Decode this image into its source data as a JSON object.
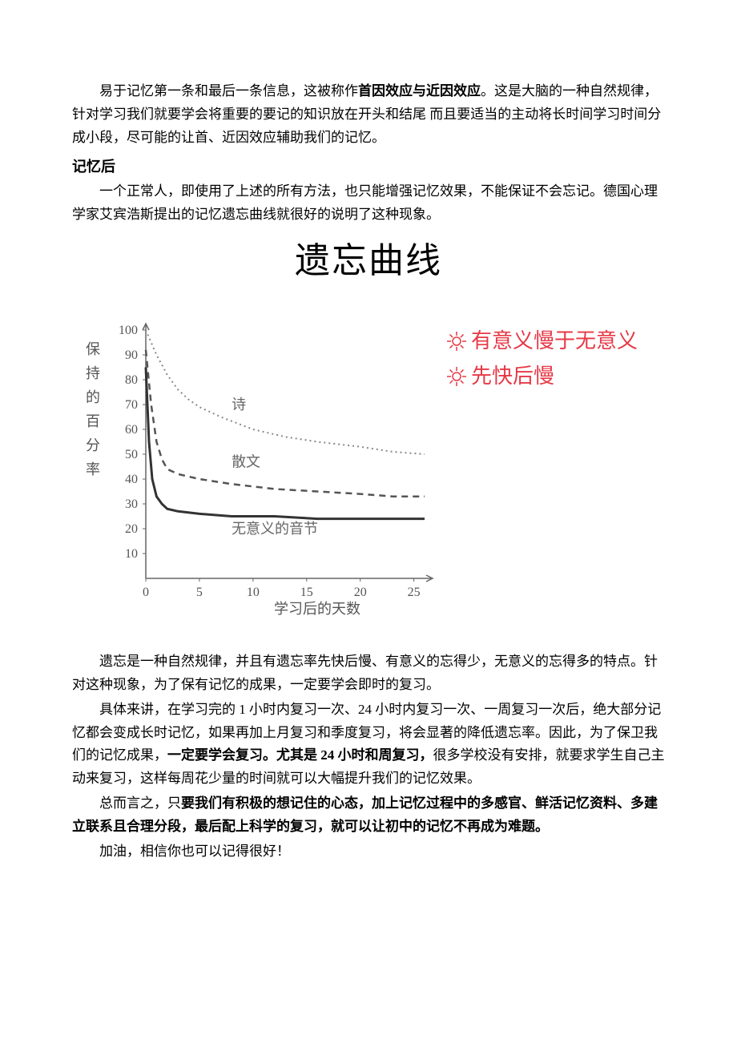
{
  "p1": {
    "a": "易于记忆第一条和最后一条信息，这被称作",
    "b": "首因效应与近因效应",
    "c": "。这是大脑的一种自然规律，针对学习我们就要学会将重要的要记的知识放在开头和结尾 而且要适当的主动将长时间学习时间分成小段，尽可能的让首、近因效应辅助我们的记忆。"
  },
  "h1": "记忆后",
  "p2": "一个正常人，即使用了上述的所有方法，也只能增强记忆效果，不能保证不会忘记。德国心理学家艾宾浩斯提出的记忆遗忘曲线就很好的说明了这种现象。",
  "chart": {
    "type": "line",
    "title": "遗忘曲线",
    "title_fontsize": 44,
    "legend": {
      "items": [
        "有意义慢于无意义",
        "先快后慢"
      ],
      "color": "#e63946",
      "fontsize": 28,
      "icon": "sun"
    },
    "y_axis": {
      "label": "保持的百分率",
      "label_fontsize": 18,
      "lim": [
        0,
        100
      ],
      "ticks": [
        10,
        20,
        30,
        40,
        50,
        60,
        70,
        80,
        90,
        100
      ]
    },
    "x_axis": {
      "label": "学习后的天数",
      "label_fontsize": 18,
      "lim": [
        0,
        26
      ],
      "ticks": [
        0,
        5,
        10,
        15,
        20,
        25
      ]
    },
    "series": [
      {
        "name": "诗",
        "label": "诗",
        "color": "#888888",
        "style": "dotted",
        "line_width": 2,
        "points": [
          [
            0,
            100
          ],
          [
            1,
            90
          ],
          [
            2,
            82
          ],
          [
            3,
            76
          ],
          [
            4,
            72
          ],
          [
            5,
            69
          ],
          [
            7,
            65
          ],
          [
            10,
            60
          ],
          [
            13,
            57
          ],
          [
            16,
            55
          ],
          [
            20,
            53
          ],
          [
            23,
            51
          ],
          [
            26,
            50
          ]
        ]
      },
      {
        "name": "散文",
        "label": "散文",
        "color": "#555555",
        "style": "dashed",
        "line_width": 2.5,
        "points": [
          [
            0,
            92
          ],
          [
            0.5,
            70
          ],
          [
            1,
            55
          ],
          [
            1.5,
            48
          ],
          [
            2,
            44
          ],
          [
            3,
            42
          ],
          [
            5,
            40
          ],
          [
            8,
            38
          ],
          [
            12,
            36
          ],
          [
            16,
            35
          ],
          [
            20,
            34
          ],
          [
            23,
            33
          ],
          [
            26,
            33
          ]
        ]
      },
      {
        "name": "无意义的音节",
        "label": "无意义的音节",
        "color": "#333333",
        "style": "solid",
        "line_width": 3,
        "points": [
          [
            0,
            85
          ],
          [
            0.3,
            55
          ],
          [
            0.6,
            40
          ],
          [
            1,
            33
          ],
          [
            1.5,
            30
          ],
          [
            2,
            28
          ],
          [
            3,
            27
          ],
          [
            5,
            26
          ],
          [
            8,
            25
          ],
          [
            12,
            25
          ],
          [
            16,
            24
          ],
          [
            20,
            24
          ],
          [
            23,
            24
          ],
          [
            26,
            24
          ]
        ]
      }
    ],
    "grid_color": "#999999",
    "background_color": "#ffffff",
    "axis_color": "#666666"
  },
  "p3": "遗忘是一种自然规律，并且有遗忘率先快后慢、有意义的忘得少，无意义的忘得多的特点。针对这种现象，为了保有记忆的成果，一定要学会即时的复习。",
  "p4": {
    "a": "具体来讲，在学习完的 1 小时内复习一次、24 小时内复习一次、一周复习一次后，绝大部分记忆都会变成长时记忆，如果再加上月复习和季度复习，将会显著的降低遗忘率。因此，为了保卫我们的记忆成果，",
    "b": "一定要学会复习。尤其是 24 小时和周复习，",
    "c": "很多学校没有安排，就要求学生自己主动来复习，这样每周花少量的时间就可以大幅提升我们的记忆效果。"
  },
  "p5": {
    "a": "总而言之，只",
    "b": "要我们有积极的想记住的心态，加上记忆过程中的多感官、鲜活记忆资料、多建立联系且合理分段，最后配上科学的复习，就可以让初中的记忆不再成为难题。"
  },
  "p6": "加油，相信你也可以记得很好！"
}
